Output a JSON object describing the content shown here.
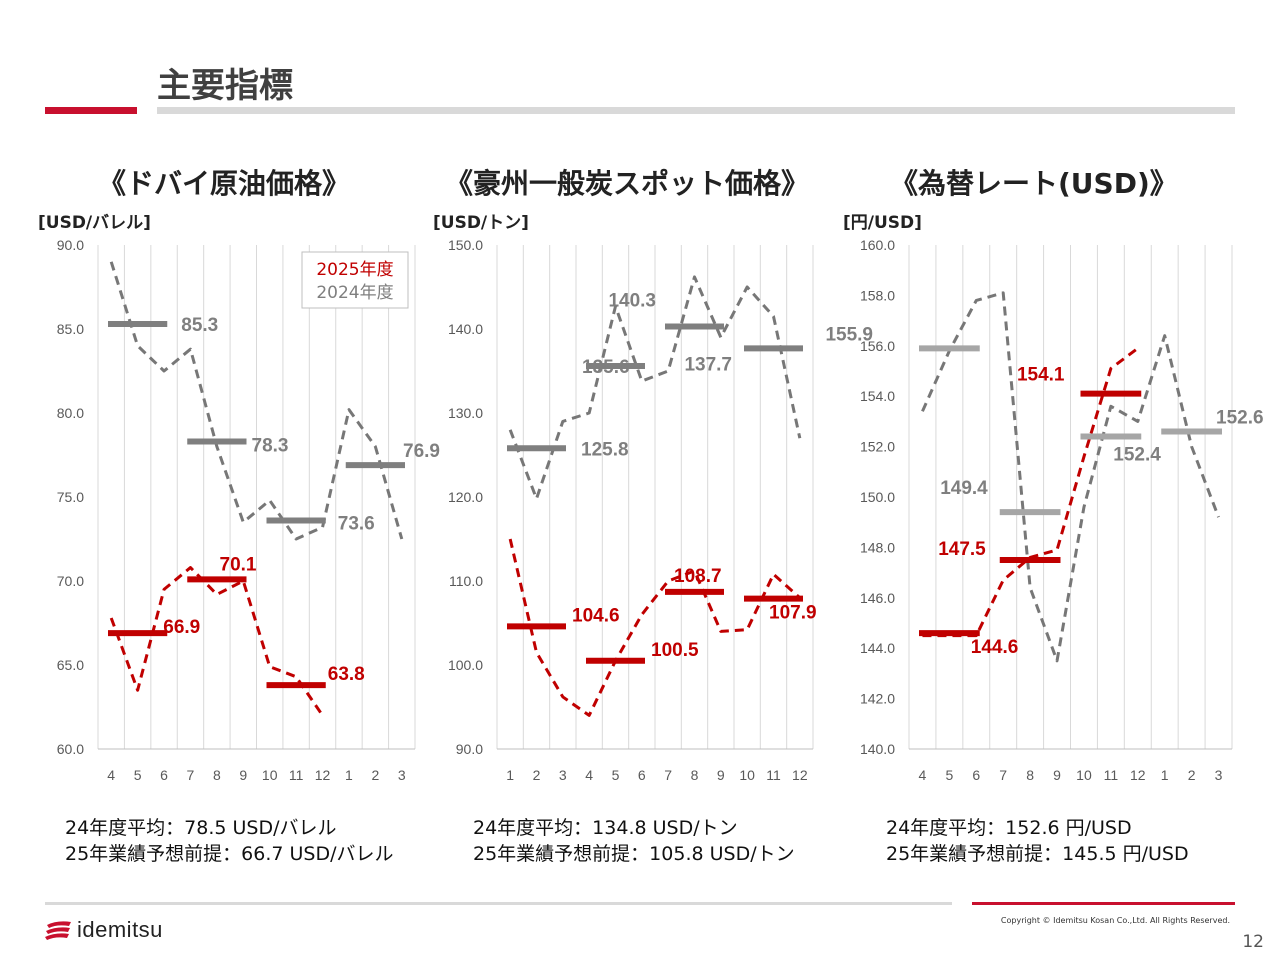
{
  "page": {
    "title": "主要指標",
    "copyright": "Copyright © Idemitsu Kosan Co.,Ltd.  All Rights Reserved.",
    "page_number": "12",
    "logo_text": "idemitsu"
  },
  "colors": {
    "accent": "#c8102e",
    "gray_line": "#777777",
    "gray_bar": "#7f7f7f",
    "gray_bar_light": "#a6a6a6",
    "red": "#c00000",
    "grid": "#d9d9d9"
  },
  "chart_data": [
    {
      "type": "line",
      "title": "《ドバイ原油価格》",
      "unit": "[USD/バレル]",
      "categories": [
        "4",
        "5",
        "6",
        "7",
        "8",
        "9",
        "10",
        "11",
        "12",
        "1",
        "2",
        "3"
      ],
      "ylim": [
        60,
        90
      ],
      "yticks": [
        "60.0",
        "65.0",
        "70.0",
        "75.0",
        "80.0",
        "85.0",
        "90.0"
      ],
      "ytick_values": [
        60,
        65,
        70,
        75,
        80,
        85,
        90
      ],
      "legend": {
        "labels": [
          "2025年度",
          "2024年度"
        ],
        "position": "top-right"
      },
      "series": [
        {
          "name": "2024年度",
          "values": [
            89.0,
            84.0,
            82.5,
            83.8,
            78.0,
            73.5,
            74.8,
            72.5,
            73.2,
            80.2,
            78.0,
            72.5
          ]
        },
        {
          "name": "2025年度",
          "values": [
            67.8,
            63.5,
            69.5,
            70.8,
            69.2,
            70.0,
            64.9,
            64.3,
            62.0,
            null,
            null,
            null
          ]
        }
      ],
      "averages": [
        {
          "series": "2024年度",
          "from": 0,
          "to": 2,
          "value": 85.3,
          "label": "85.3"
        },
        {
          "series": "2024年度",
          "from": 3,
          "to": 5,
          "value": 78.3,
          "label": "78.3"
        },
        {
          "series": "2024年度",
          "from": 6,
          "to": 8,
          "value": 73.6,
          "label": "73.6"
        },
        {
          "series": "2024年度",
          "from": 9,
          "to": 11,
          "value": 76.9,
          "label": "76.9"
        },
        {
          "series": "2025年度",
          "from": 0,
          "to": 2,
          "value": 66.9,
          "label": "66.9"
        },
        {
          "series": "2025年度",
          "from": 3,
          "to": 5,
          "value": 70.1,
          "label": "70.1"
        },
        {
          "series": "2025年度",
          "from": 6,
          "to": 8,
          "value": 63.8,
          "label": "63.8"
        }
      ],
      "notes": [
        "24年度平均：78.5 USD/バレル",
        "25年業績予想前提：66.7 USD/バレル"
      ]
    },
    {
      "type": "line",
      "title": "《豪州一般炭スポット価格》",
      "unit": "[USD/トン]",
      "categories": [
        "1",
        "2",
        "3",
        "4",
        "5",
        "6",
        "7",
        "8",
        "9",
        "10",
        "11",
        "12"
      ],
      "ylim": [
        90,
        150
      ],
      "yticks": [
        "90.0",
        "100.0",
        "110.0",
        "120.0",
        "130.0",
        "140.0",
        "150.0"
      ],
      "ytick_values": [
        90,
        100,
        110,
        120,
        130,
        140,
        150
      ],
      "series": [
        {
          "name": "2024年度",
          "values": [
            128.0,
            119.8,
            129.0,
            130.0,
            142.7,
            133.8,
            135.0,
            146.2,
            139.0,
            145.0,
            141.5,
            127.0
          ]
        },
        {
          "name": "2025年度",
          "values": [
            115.0,
            101.5,
            96.2,
            94.0,
            100.5,
            106.0,
            110.0,
            111.2,
            104.0,
            104.2,
            110.8,
            108.0
          ]
        }
      ],
      "averages": [
        {
          "series": "2024年度",
          "from": 0,
          "to": 2,
          "value": 125.8,
          "label": "125.8"
        },
        {
          "series": "2024年度",
          "from": 3,
          "to": 5,
          "value": 135.6,
          "label": "135.6"
        },
        {
          "series": "2024年度",
          "from": 6,
          "to": 8,
          "value": 140.3,
          "label": "140.3"
        },
        {
          "series": "2024年度",
          "from": 9,
          "to": 11,
          "value": 137.7,
          "label": "137.7"
        },
        {
          "series": "2025年度",
          "from": 0,
          "to": 2,
          "value": 104.6,
          "label": "104.6"
        },
        {
          "series": "2025年度",
          "from": 3,
          "to": 5,
          "value": 100.5,
          "label": "100.5"
        },
        {
          "series": "2025年度",
          "from": 6,
          "to": 8,
          "value": 108.7,
          "label": "108.7"
        },
        {
          "series": "2025年度",
          "from": 9,
          "to": 11,
          "value": 107.9,
          "label": "107.9"
        }
      ],
      "notes": [
        "24年度平均：134.8 USD/トン",
        "25年業績予想前提：105.8 USD/トン"
      ]
    },
    {
      "type": "line",
      "title": "《為替レート(USD)》",
      "unit": "[円/USD]",
      "categories": [
        "4",
        "5",
        "6",
        "7",
        "8",
        "9",
        "10",
        "11",
        "12",
        "1",
        "2",
        "3"
      ],
      "ylim": [
        140,
        160
      ],
      "yticks": [
        "140.0",
        "142.0",
        "144.0",
        "146.0",
        "148.0",
        "150.0",
        "152.0",
        "154.0",
        "156.0",
        "158.0",
        "160.0"
      ],
      "ytick_values": [
        140,
        142,
        144,
        146,
        148,
        150,
        152,
        154,
        156,
        158,
        160
      ],
      "series": [
        {
          "name": "2024年度",
          "values": [
            153.4,
            155.8,
            157.8,
            158.1,
            146.4,
            143.5,
            149.6,
            153.6,
            153.0,
            156.4,
            152.0,
            149.2
          ]
        },
        {
          "name": "2025年度",
          "values": [
            144.5,
            144.5,
            144.5,
            146.7,
            147.6,
            147.9,
            151.6,
            155.1,
            155.9,
            null,
            null,
            null
          ]
        }
      ],
      "averages": [
        {
          "series": "2024年度",
          "from": 0,
          "to": 2,
          "value": 155.9,
          "label": "155.9"
        },
        {
          "series": "2024年度",
          "from": 3,
          "to": 5,
          "value": 149.4,
          "label": "149.4"
        },
        {
          "series": "2024年度",
          "from": 6,
          "to": 8,
          "value": 152.4,
          "label": "152.4"
        },
        {
          "series": "2024年度",
          "from": 9,
          "to": 11,
          "value": 152.6,
          "label": "152.6"
        },
        {
          "series": "2025年度",
          "from": 0,
          "to": 2,
          "value": 144.6,
          "label": "144.6"
        },
        {
          "series": "2025年度",
          "from": 3,
          "to": 5,
          "value": 147.5,
          "label": "147.5"
        },
        {
          "series": "2025年度",
          "from": 6,
          "to": 8,
          "value": 154.1,
          "label": "154.1"
        }
      ],
      "notes": [
        "24年度平均：152.6 円/USD",
        "25年業績予想前提：145.5 円/USD"
      ]
    }
  ]
}
